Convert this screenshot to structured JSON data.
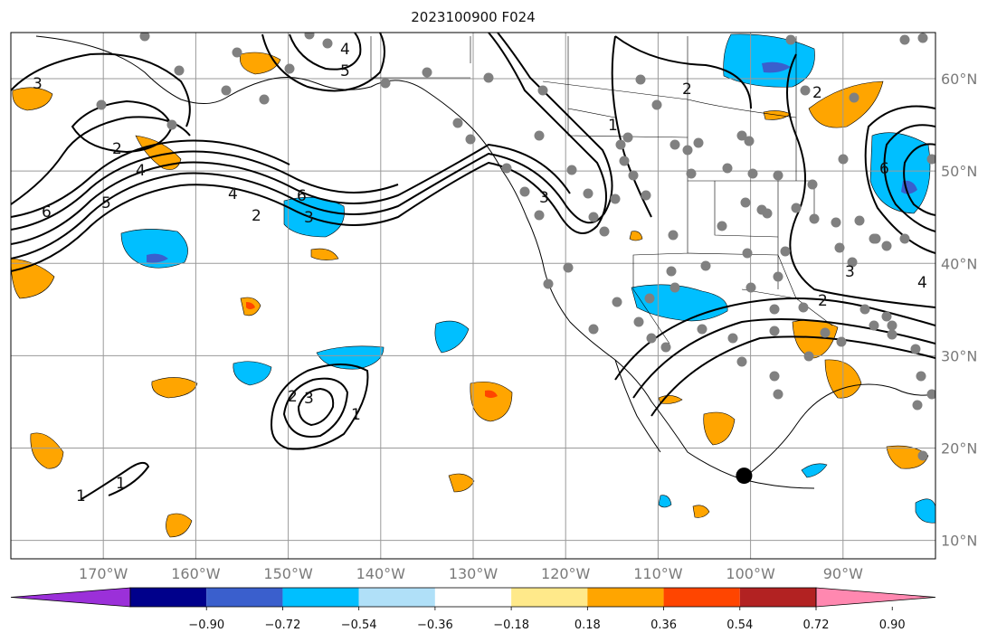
{
  "title": "2023100900 F024",
  "map": {
    "lon_ticks": [
      "170°W",
      "160°W",
      "150°W",
      "140°W",
      "130°W",
      "120°W",
      "110°W",
      "100°W",
      "90°W"
    ],
    "lat_ticks": [
      "60°N",
      "50°N",
      "40°N",
      "30°N",
      "20°N",
      "10°N"
    ],
    "lon_range": [
      -180,
      -80
    ],
    "lat_range": [
      8,
      65
    ],
    "grid": true,
    "contour_levels_shown": [
      "1",
      "2",
      "3",
      "4",
      "5",
      "6"
    ],
    "marker": {
      "label": "black-dot",
      "lon": -100.7,
      "lat": 17.0
    }
  },
  "colorbar": {
    "orientation": "horizontal",
    "extend": "both",
    "labels": [
      "−0.90",
      "−0.72",
      "−0.54",
      "−0.36",
      "−0.18",
      "0.18",
      "0.36",
      "0.54",
      "0.72",
      "0.90"
    ],
    "colors": [
      "#9b30d9",
      "#00008b",
      "#3a5fcd",
      "#00bfff",
      "#b0e0f8",
      "#ffffff",
      "#ffe98a",
      "#ffa500",
      "#ff4500",
      "#b22222",
      "#ff88b0"
    ]
  }
}
